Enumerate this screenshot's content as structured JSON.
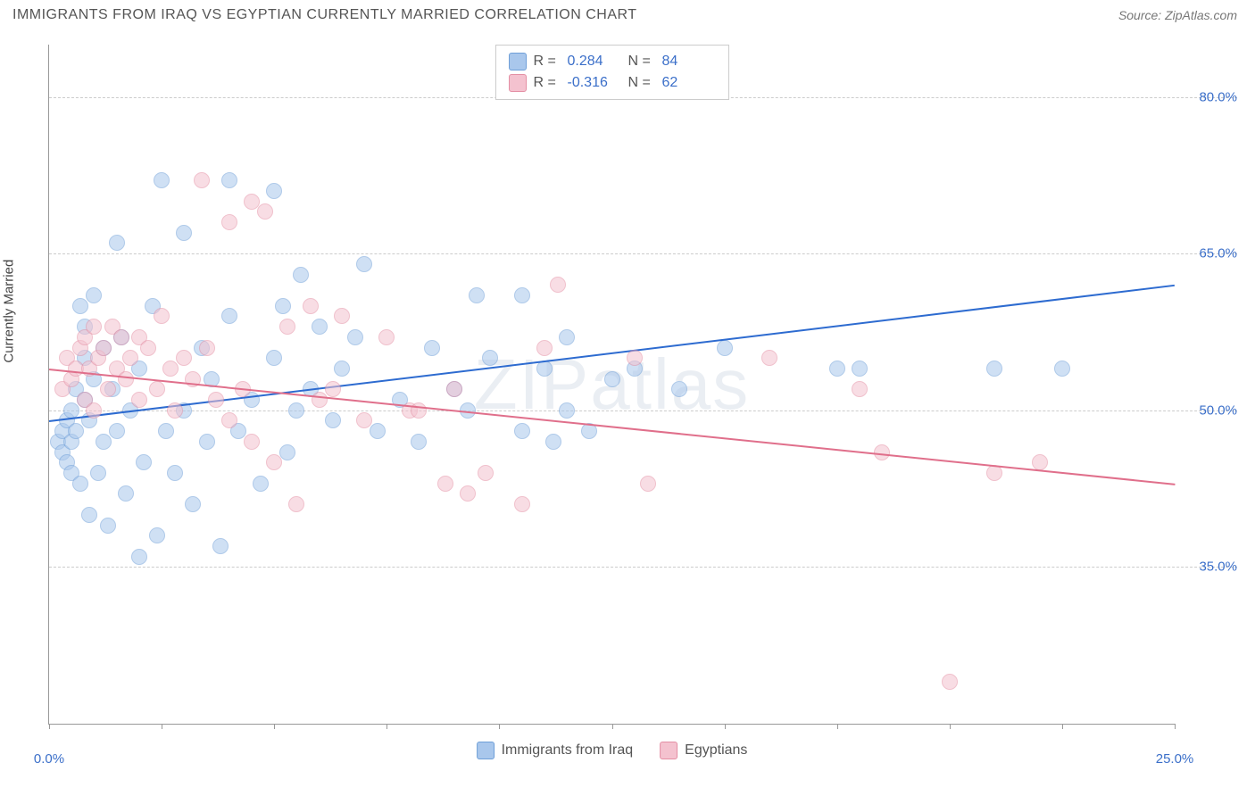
{
  "header": {
    "title": "IMMIGRANTS FROM IRAQ VS EGYPTIAN CURRENTLY MARRIED CORRELATION CHART",
    "source": "Source: ZipAtlas.com"
  },
  "watermark": "ZIPatlas",
  "chart": {
    "type": "scatter",
    "ylabel": "Currently Married",
    "xlim": [
      0,
      25
    ],
    "ylim": [
      20,
      85
    ],
    "yticks": [
      {
        "v": 35,
        "label": "35.0%"
      },
      {
        "v": 50,
        "label": "50.0%"
      },
      {
        "v": 65,
        "label": "65.0%"
      },
      {
        "v": 80,
        "label": "80.0%"
      }
    ],
    "xticks_minor": [
      0,
      2.5,
      5,
      7.5,
      10,
      12.5,
      15,
      17.5,
      20,
      22.5,
      25
    ],
    "xticks_label": [
      {
        "v": 0,
        "label": "0.0%"
      },
      {
        "v": 25,
        "label": "25.0%"
      }
    ],
    "background_color": "#ffffff",
    "grid_color": "#cccccc",
    "marker_radius": 9,
    "marker_opacity": 0.55,
    "series": [
      {
        "name": "Immigrants from Iraq",
        "fill": "#a9c7ec",
        "stroke": "#6f9fd8",
        "line_color": "#2d6bd0",
        "R": "0.284",
        "N": "84",
        "trend": {
          "x1": 0,
          "y1": 49,
          "x2": 25,
          "y2": 62
        },
        "points": [
          [
            0.2,
            47
          ],
          [
            0.3,
            48
          ],
          [
            0.3,
            46
          ],
          [
            0.4,
            49
          ],
          [
            0.4,
            45
          ],
          [
            0.5,
            47
          ],
          [
            0.5,
            50
          ],
          [
            0.5,
            44
          ],
          [
            0.6,
            52
          ],
          [
            0.6,
            48
          ],
          [
            0.7,
            60
          ],
          [
            0.7,
            43
          ],
          [
            0.8,
            55
          ],
          [
            0.8,
            58
          ],
          [
            0.8,
            51
          ],
          [
            0.9,
            40
          ],
          [
            0.9,
            49
          ],
          [
            1.0,
            61
          ],
          [
            1.0,
            53
          ],
          [
            1.1,
            44
          ],
          [
            1.2,
            56
          ],
          [
            1.2,
            47
          ],
          [
            1.3,
            39
          ],
          [
            1.4,
            52
          ],
          [
            1.5,
            66
          ],
          [
            1.5,
            48
          ],
          [
            1.6,
            57
          ],
          [
            1.7,
            42
          ],
          [
            1.8,
            50
          ],
          [
            2.0,
            36
          ],
          [
            2.0,
            54
          ],
          [
            2.1,
            45
          ],
          [
            2.3,
            60
          ],
          [
            2.4,
            38
          ],
          [
            2.5,
            72
          ],
          [
            2.6,
            48
          ],
          [
            2.8,
            44
          ],
          [
            3.0,
            67
          ],
          [
            3.0,
            50
          ],
          [
            3.2,
            41
          ],
          [
            3.4,
            56
          ],
          [
            3.5,
            47
          ],
          [
            3.6,
            53
          ],
          [
            3.8,
            37
          ],
          [
            4.0,
            72
          ],
          [
            4.0,
            59
          ],
          [
            4.2,
            48
          ],
          [
            4.5,
            51
          ],
          [
            4.7,
            43
          ],
          [
            5.0,
            71
          ],
          [
            5.0,
            55
          ],
          [
            5.2,
            60
          ],
          [
            5.3,
            46
          ],
          [
            5.5,
            50
          ],
          [
            5.6,
            63
          ],
          [
            5.8,
            52
          ],
          [
            6.0,
            58
          ],
          [
            6.3,
            49
          ],
          [
            6.5,
            54
          ],
          [
            6.8,
            57
          ],
          [
            7.0,
            64
          ],
          [
            7.3,
            48
          ],
          [
            7.8,
            51
          ],
          [
            8.2,
            47
          ],
          [
            8.5,
            56
          ],
          [
            9.0,
            52
          ],
          [
            9.3,
            50
          ],
          [
            9.5,
            61
          ],
          [
            9.8,
            55
          ],
          [
            10.5,
            61
          ],
          [
            10.5,
            48
          ],
          [
            11.0,
            54
          ],
          [
            11.2,
            47
          ],
          [
            11.5,
            50
          ],
          [
            11.5,
            57
          ],
          [
            12.0,
            48
          ],
          [
            12.5,
            53
          ],
          [
            13.0,
            54
          ],
          [
            14.0,
            52
          ],
          [
            15.0,
            56
          ],
          [
            17.5,
            54
          ],
          [
            18.0,
            54
          ],
          [
            21.0,
            54
          ],
          [
            22.5,
            54
          ]
        ]
      },
      {
        "name": "Egyptians",
        "fill": "#f4c2cf",
        "stroke": "#e48fa4",
        "line_color": "#e06f8b",
        "R": "-0.316",
        "N": "62",
        "trend": {
          "x1": 0,
          "y1": 54,
          "x2": 25,
          "y2": 43
        },
        "points": [
          [
            0.3,
            52
          ],
          [
            0.4,
            55
          ],
          [
            0.5,
            53
          ],
          [
            0.6,
            54
          ],
          [
            0.7,
            56
          ],
          [
            0.8,
            51
          ],
          [
            0.8,
            57
          ],
          [
            0.9,
            54
          ],
          [
            1.0,
            58
          ],
          [
            1.0,
            50
          ],
          [
            1.1,
            55
          ],
          [
            1.2,
            56
          ],
          [
            1.3,
            52
          ],
          [
            1.4,
            58
          ],
          [
            1.5,
            54
          ],
          [
            1.6,
            57
          ],
          [
            1.7,
            53
          ],
          [
            1.8,
            55
          ],
          [
            2.0,
            57
          ],
          [
            2.0,
            51
          ],
          [
            2.2,
            56
          ],
          [
            2.4,
            52
          ],
          [
            2.5,
            59
          ],
          [
            2.7,
            54
          ],
          [
            2.8,
            50
          ],
          [
            3.0,
            55
          ],
          [
            3.2,
            53
          ],
          [
            3.4,
            72
          ],
          [
            3.5,
            56
          ],
          [
            3.7,
            51
          ],
          [
            4.0,
            49
          ],
          [
            4.0,
            68
          ],
          [
            4.3,
            52
          ],
          [
            4.5,
            70
          ],
          [
            4.5,
            47
          ],
          [
            4.8,
            69
          ],
          [
            5.0,
            45
          ],
          [
            5.3,
            58
          ],
          [
            5.5,
            41
          ],
          [
            5.8,
            60
          ],
          [
            6.0,
            51
          ],
          [
            6.3,
            52
          ],
          [
            6.5,
            59
          ],
          [
            7.0,
            49
          ],
          [
            7.5,
            57
          ],
          [
            8.0,
            50
          ],
          [
            8.2,
            50
          ],
          [
            8.8,
            43
          ],
          [
            9.0,
            52
          ],
          [
            9.3,
            42
          ],
          [
            9.7,
            44
          ],
          [
            10.5,
            41
          ],
          [
            11.0,
            56
          ],
          [
            11.3,
            62
          ],
          [
            13.0,
            55
          ],
          [
            13.3,
            43
          ],
          [
            16.0,
            55
          ],
          [
            18.0,
            52
          ],
          [
            18.5,
            46
          ],
          [
            20.0,
            24
          ],
          [
            21.0,
            44
          ],
          [
            22.0,
            45
          ]
        ]
      }
    ]
  },
  "legend_bottom": [
    {
      "label": "Immigrants from Iraq",
      "swatch_fill": "#a9c7ec",
      "swatch_stroke": "#6f9fd8"
    },
    {
      "label": "Egyptians",
      "swatch_fill": "#f4c2cf",
      "swatch_stroke": "#e48fa4"
    }
  ],
  "legend_top": [
    {
      "swatch_fill": "#a9c7ec",
      "swatch_stroke": "#6f9fd8",
      "r_label": "R =",
      "r_val": "0.284",
      "n_label": "N =",
      "n_val": "84"
    },
    {
      "swatch_fill": "#f4c2cf",
      "swatch_stroke": "#e48fa4",
      "r_label": "R =",
      "r_val": "-0.316",
      "n_label": "N =",
      "n_val": "62"
    }
  ]
}
